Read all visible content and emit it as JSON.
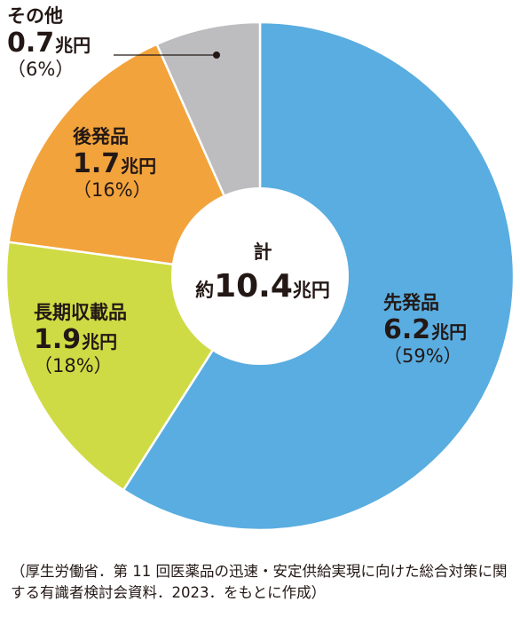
{
  "chart_data": {
    "type": "pie",
    "variant": "donut",
    "unit": "兆円",
    "total": {
      "label": "計",
      "prefix": "約",
      "value": "10.4",
      "unit": "兆円"
    },
    "slices": [
      {
        "name": "先発品",
        "value": 6.2,
        "value_text": "6.2",
        "unit": "兆円",
        "percent_text": "（59%）",
        "color": "#59ade0"
      },
      {
        "name": "長期収載品",
        "value": 1.9,
        "value_text": "1.9",
        "unit": "兆円",
        "percent_text": "（18%）",
        "color": "#cfdb44"
      },
      {
        "name": "後発品",
        "value": 1.7,
        "value_text": "1.7",
        "unit": "兆円",
        "percent_text": "（16%）",
        "color": "#f2a33c"
      },
      {
        "name": "その他",
        "value": 0.7,
        "value_text": "0.7",
        "unit": "兆円",
        "percent_text": "（6%）",
        "color": "#bdbdbf"
      }
    ],
    "slice_order": "clockwise from top",
    "source_note": "（厚生労働省．第 11 回医薬品の迅速・安定供給実現に向けた総合対策に関する有識者検討会資料．2023．をもとに作成）"
  }
}
